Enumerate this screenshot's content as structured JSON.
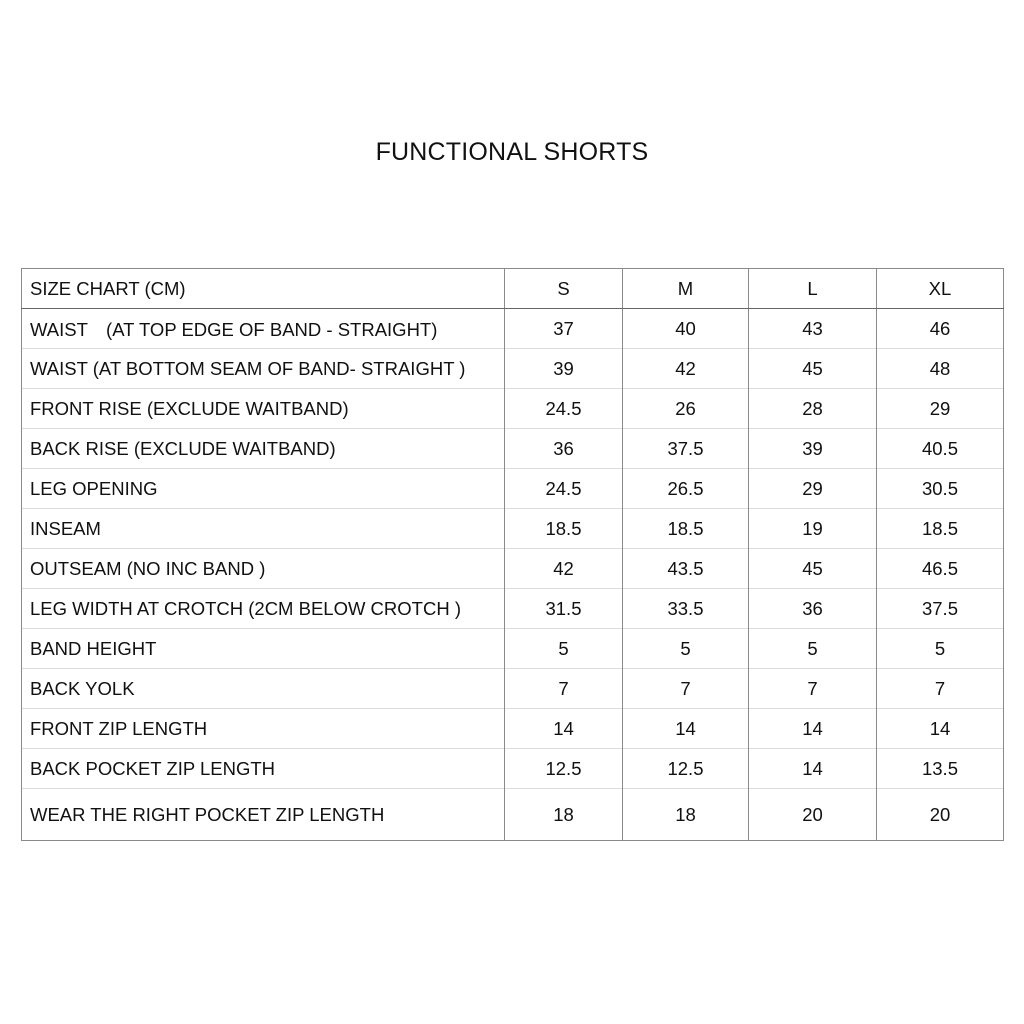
{
  "title": "FUNCTIONAL SHORTS",
  "table": {
    "header": [
      "SIZE CHART (CM)",
      "S",
      "M",
      "L",
      "XL"
    ],
    "rows": [
      [
        "WAIST　(AT TOP EDGE OF BAND - STRAIGHT)",
        "37",
        "40",
        "43",
        "46"
      ],
      [
        "WAIST (AT BOTTOM SEAM OF BAND- STRAIGHT )",
        "39",
        "42",
        "45",
        "48"
      ],
      [
        "FRONT RISE (EXCLUDE WAITBAND)",
        "24.5",
        "26",
        "28",
        "29"
      ],
      [
        "BACK RISE (EXCLUDE WAITBAND)",
        "36",
        "37.5",
        "39",
        "40.5"
      ],
      [
        "LEG OPENING",
        "24.5",
        "26.5",
        "29",
        "30.5"
      ],
      [
        "INSEAM",
        "18.5",
        "18.5",
        "19",
        "18.5"
      ],
      [
        "OUTSEAM (NO INC BAND )",
        "42",
        "43.5",
        "45",
        "46.5"
      ],
      [
        "LEG WIDTH AT CROTCH (2CM BELOW CROTCH )",
        "31.5",
        "33.5",
        "36",
        "37.5"
      ],
      [
        "BAND HEIGHT",
        "5",
        "5",
        "5",
        "5"
      ],
      [
        "BACK YOLK",
        "7",
        "7",
        "7",
        "7"
      ],
      [
        "FRONT ZIP LENGTH",
        "14",
        "14",
        "14",
        "14"
      ],
      [
        "BACK POCKET ZIP LENGTH",
        "12.5",
        "12.5",
        "14",
        "13.5"
      ],
      [
        "WEAR THE RIGHT POCKET ZIP LENGTH",
        "18",
        "18",
        "20",
        "20"
      ]
    ]
  }
}
